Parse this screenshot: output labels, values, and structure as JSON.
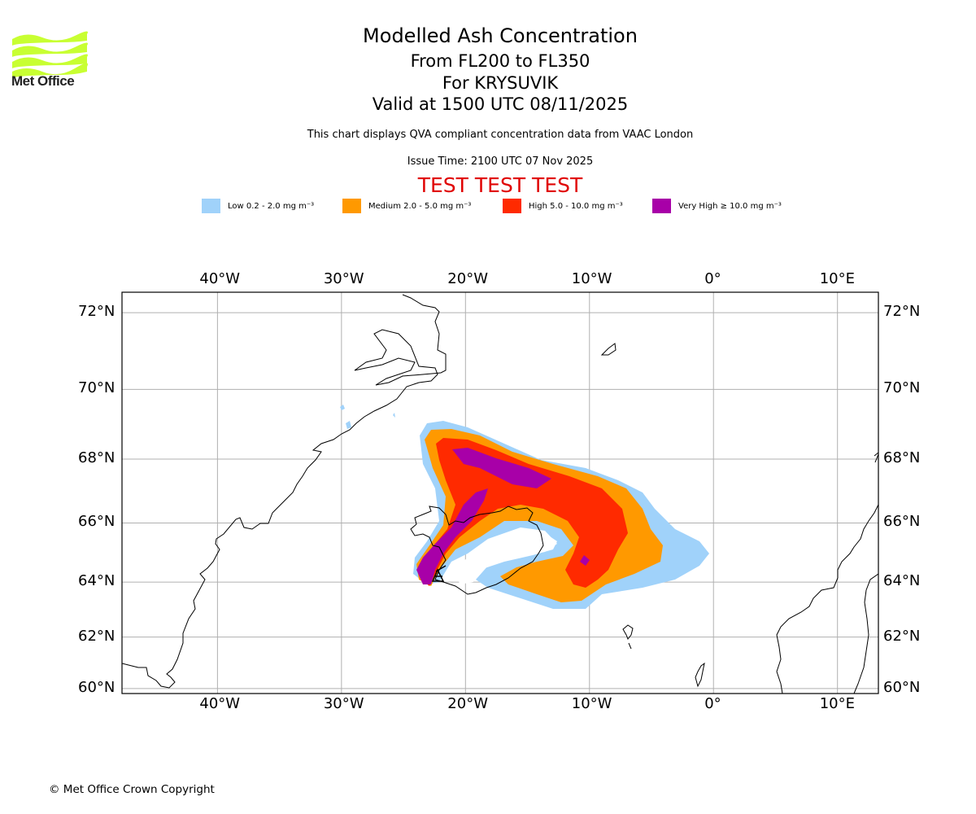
{
  "header": {
    "logo_text": "Met Office",
    "title": "Modelled Ash Concentration",
    "flight_levels": "From FL200 to FL350",
    "volcano": "For KRYSUVIK",
    "valid_time": "Valid at 1500 UTC 08/11/2025",
    "subtitle": "This chart displays QVA compliant concentration data from VAAC London",
    "issue_time": "Issue Time: 2100 UTC 07 Nov 2025",
    "test_banner": "TEST TEST TEST"
  },
  "legend": [
    {
      "label": "Low 0.2 - 2.0 mg m⁻³",
      "color": "#a0d2fa"
    },
    {
      "label": "Medium 2.0 - 5.0 mg m⁻³",
      "color": "#ff9900"
    },
    {
      "label": "High 5.0 - 10.0 mg m⁻³",
      "color": "#ff2a00"
    },
    {
      "label": "Very High ≥ 10.0 mg m⁻³",
      "color": "#a800a8"
    }
  ],
  "map": {
    "lon_ticks": [
      "40°W",
      "30°W",
      "20°W",
      "10°W",
      "0°",
      "10°E"
    ],
    "lat_ticks": [
      "72°N",
      "70°N",
      "68°N",
      "66°N",
      "64°N",
      "62°N",
      "60°N"
    ],
    "lon_values": [
      -40,
      -30,
      -20,
      -10,
      0,
      10
    ],
    "lat_values": [
      72,
      70,
      68,
      66,
      64,
      62,
      60
    ],
    "extent": {
      "lon": [
        -47.7,
        13.3
      ],
      "lat": [
        59.8,
        72.5
      ]
    },
    "grid_color": "#b0b0b0",
    "coast_color": "#000000",
    "volcano_marker": "triangle-icon"
  },
  "footer": {
    "copyright": "© Met Office Crown Copyright"
  }
}
